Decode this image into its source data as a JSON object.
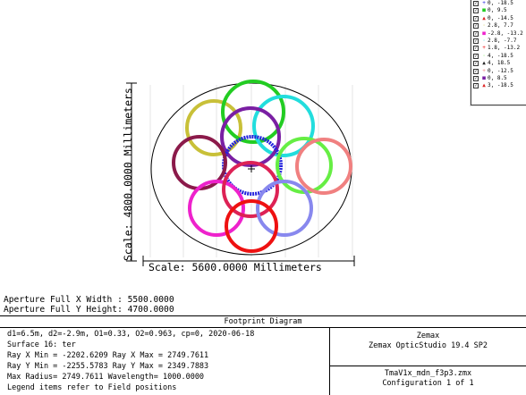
{
  "plot": {
    "scale_y": "Scale: 4800.0000 Millimeters",
    "scale_x": "Scale: 5600.0000 Millimeters",
    "colors": {
      "yellow": "#c8c038",
      "green": "#22cc22",
      "cyan": "#22dddd",
      "purple": "#7a1fa3",
      "blue": "#2222dd",
      "darkred": "#8b1a4a",
      "lightgreen": "#66ee44",
      "salmon": "#f08080",
      "magenta": "#ee22cc",
      "crimson": "#dd2255",
      "lavender": "#8888ee",
      "red": "#ee1111"
    }
  },
  "legend": {
    "items": [
      {
        "symbol": "+",
        "label": "0, -18.5",
        "color": "#2222dd"
      },
      {
        "symbol": "■",
        "label": "0, 9.5",
        "color": "#22cc22"
      },
      {
        "symbol": "▲",
        "label": "0, -14.5",
        "color": "#dd2222"
      },
      {
        "symbol": "·",
        "label": "2.8, 7.7",
        "color": "#c8c038"
      },
      {
        "symbol": "■",
        "label": "-2.8, -13.2",
        "color": "#ee22cc"
      },
      {
        "symbol": "·",
        "label": "2.8, -7.7",
        "color": "#22dddd"
      },
      {
        "symbol": "+",
        "label": "1.8, -13.2",
        "color": "#ee1111"
      },
      {
        "symbol": "·",
        "label": "4, -18.5",
        "color": "#66ee44"
      },
      {
        "symbol": "▲",
        "label": "4, 18.5",
        "color": "#222222"
      },
      {
        "symbol": "+",
        "label": "0, -12.5",
        "color": "#f08080"
      },
      {
        "symbol": "■",
        "label": "0, 8.5",
        "color": "#7a1fa3"
      },
      {
        "symbol": "▲",
        "label": "3, -18.5",
        "color": "#dd2222"
      }
    ]
  },
  "aperture": {
    "x_width": "Aperture Full X Width : 5500.0000",
    "y_height": "Aperture Full Y Height: 4700.0000"
  },
  "footer": {
    "title": "Footprint Diagram",
    "line1": "d1=6.5m, d2=-2.9m, O1=0.33, O2=0.963, cp=0, 2020-06-18",
    "line2": "Surface 16: ter",
    "line3": "Ray X Min = -2202.6209 Ray X Max = 2749.7611",
    "line4": "Ray Y Min = -2255.5783 Ray Y Max = 2349.7883",
    "line5": "Max Radius= 2749.7611 Wavelength= 1000.0000",
    "line6": "Legend items refer to Field positions",
    "company": "Zemax",
    "product": "Zemax OpticStudio 19.4 SP2",
    "file": "TmaV1x_mdn_f3p3.zmx",
    "config": "Configuration 1 of 1"
  }
}
